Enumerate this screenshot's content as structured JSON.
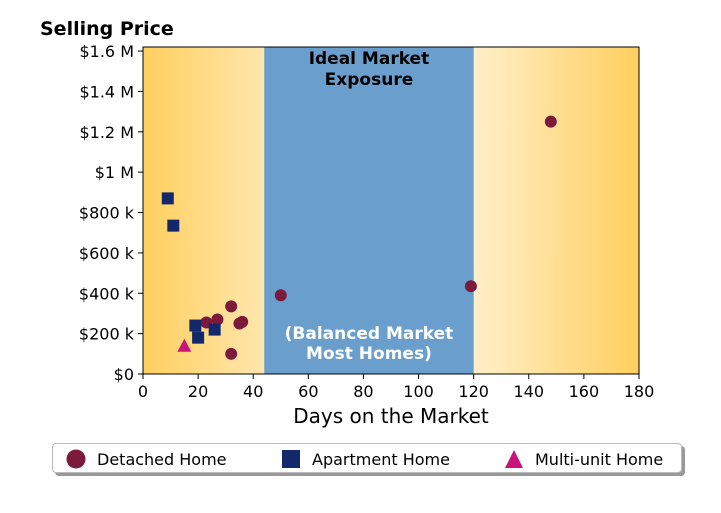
{
  "chart_data": {
    "type": "scatter",
    "title": "Selling Price",
    "xlabel": "Days on the Market",
    "ylabel": "",
    "xlim": [
      0,
      180
    ],
    "ylim": [
      0,
      1620000
    ],
    "xticks": [
      0,
      20,
      40,
      60,
      80,
      100,
      120,
      140,
      160,
      180
    ],
    "xtick_labels": [
      "0",
      "20",
      "40",
      "60",
      "80",
      "100",
      "120",
      "140",
      "160",
      "180"
    ],
    "yticks": [
      0,
      200000,
      400000,
      600000,
      800000,
      1000000,
      1200000,
      1400000,
      1600000
    ],
    "ytick_labels": [
      "$0",
      "$200 k",
      "$400 k",
      "$600 k",
      "$800 k",
      "$1 M",
      "$1.2 M",
      "$1.4 M",
      "$1.6 M"
    ],
    "grid": false,
    "legend_position": "bottom",
    "band": {
      "x_range": [
        44,
        120
      ],
      "color": "#6a9fcd",
      "label_top": [
        "Ideal Market",
        "Exposure"
      ],
      "label_bottom": [
        "(Balanced Market",
        "Most Homes)"
      ]
    },
    "background_gradient": {
      "edge_color": "#ffcf5f",
      "center_color": "#ffffff"
    },
    "series": [
      {
        "name": "Detached Home",
        "marker": "circle",
        "color": "#7b1a3a",
        "points": [
          [
            23,
            255000
          ],
          [
            27,
            270000
          ],
          [
            32,
            335000
          ],
          [
            35,
            250000
          ],
          [
            36,
            258000
          ],
          [
            32,
            100000
          ],
          [
            50,
            390000
          ],
          [
            119,
            435000
          ],
          [
            148,
            1250000
          ]
        ]
      },
      {
        "name": "Apartment Home",
        "marker": "square",
        "color": "#13276b",
        "points": [
          [
            9,
            870000
          ],
          [
            11,
            735000
          ],
          [
            19,
            240000
          ],
          [
            20,
            180000
          ],
          [
            26,
            220000
          ]
        ]
      },
      {
        "name": "Multi-unit Home",
        "marker": "triangle",
        "color": "#c7137a",
        "points": [
          [
            15,
            140000
          ]
        ]
      }
    ]
  }
}
